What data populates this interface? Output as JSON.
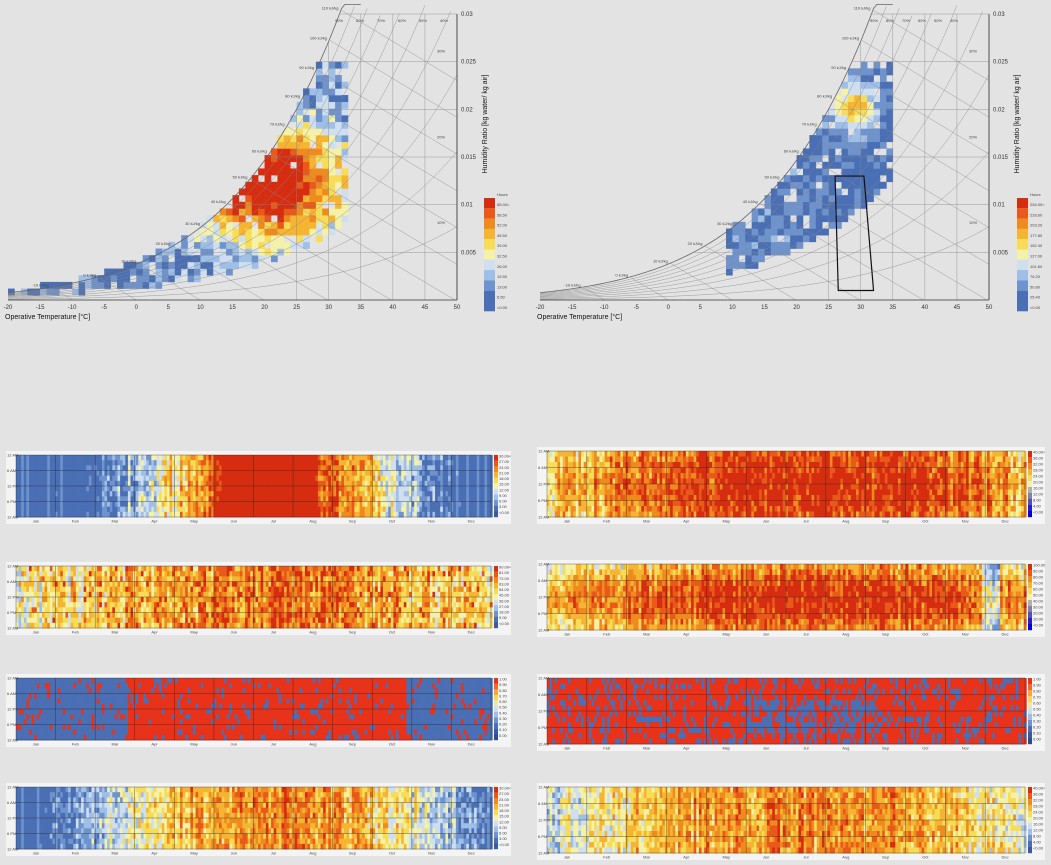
{
  "colors": {
    "background": "#e3e3e3",
    "scale": [
      "#4a6fb4",
      "#6e93cd",
      "#9fbfe6",
      "#cfdff0",
      "#f4f1a8",
      "#f7dc58",
      "#f5b533",
      "#ef8a1e",
      "#e8591a",
      "#d62d10"
    ],
    "binary_low": "#4a6fb4",
    "binary_high": "#e8321a"
  },
  "chart_data": [
    {
      "type": "heatmap",
      "id": "psychrometric-left",
      "xlabel": "Operative Temperature [°C]",
      "ylabel": "Humidity Ratio [kg water/ kg air]",
      "x_ticks": [
        "-20",
        "-15",
        "-10",
        "-5",
        "0",
        "5",
        "10",
        "15",
        "20",
        "25",
        "30",
        "35",
        "40",
        "45",
        "50"
      ],
      "xlim": [
        -20,
        50
      ],
      "y_ticks": [
        "0.005",
        "0.01",
        "0.015",
        "0.02",
        "0.025",
        "0.03"
      ],
      "ylim": [
        0,
        0.03
      ],
      "rh_labels": [
        "90%",
        "80%",
        "70%",
        "60%",
        "50%",
        "40%",
        "30%",
        "20%",
        "10%"
      ],
      "enthalpy_labels": [
        "-10 kJ/kg",
        "0 kJ/kg",
        "10 kJ/kg",
        "20 kJ/kg",
        "30 kJ/kg",
        "40 kJ/kg",
        "50 kJ/kg",
        "60 kJ/kg",
        "70 kJ/kg",
        "80 kJ/kg",
        "90 kJ/kg",
        "100 kJ/kg",
        "110 kJ/kg"
      ],
      "legend_title": "Hours",
      "legend": [
        "65.00<",
        "58.50",
        "52.00",
        "45.50",
        "39.00",
        "32.50",
        "26.00",
        "19.50",
        "13.00",
        "6.50",
        "<0.00"
      ],
      "legend_placement": "right",
      "peak_region": {
        "x": [
          15,
          25
        ],
        "y": [
          0.008,
          0.016
        ]
      }
    },
    {
      "type": "heatmap",
      "id": "psychrometric-right",
      "xlabel": "Operative Temperature [°C]",
      "ylabel": "Humidity Ratio [kg water/ kg air]",
      "x_ticks": [
        "-20",
        "-15",
        "-10",
        "-5",
        "0",
        "5",
        "10",
        "15",
        "20",
        "25",
        "30",
        "35",
        "40",
        "45",
        "50"
      ],
      "xlim": [
        -20,
        50
      ],
      "y_ticks": [
        "0.005",
        "0.01",
        "0.015",
        "0.02",
        "0.025",
        "0.03"
      ],
      "ylim": [
        0,
        0.03
      ],
      "rh_labels": [
        "90%",
        "80%",
        "70%",
        "60%",
        "50%",
        "40%",
        "30%",
        "20%",
        "10%"
      ],
      "enthalpy_labels": [
        "-10 kJ/kg",
        "0 kJ/kg",
        "10 kJ/kg",
        "20 kJ/kg",
        "30 kJ/kg",
        "40 kJ/kg",
        "50 kJ/kg",
        "60 kJ/kg",
        "70 kJ/kg",
        "80 kJ/kg",
        "90 kJ/kg",
        "100 kJ/kg",
        "110 kJ/kg"
      ],
      "legend_title": "Hours",
      "legend": [
        "254.00<",
        "228.60",
        "203.20",
        "177.80",
        "152.40",
        "127.00",
        "101.60",
        "76.20",
        "50.80",
        "25.40",
        "<0.00"
      ],
      "legend_placement": "right",
      "peak_region": {
        "x": [
          25,
          32
        ],
        "y": [
          0.018,
          0.022
        ]
      },
      "comfort_box": {
        "x": [
          26,
          32
        ],
        "y": [
          0.001,
          0.013
        ]
      }
    },
    {
      "type": "heatmap",
      "id": "annual-strip-l1",
      "mode": "seasonal-blue",
      "months": [
        "Jan",
        "Feb",
        "Mar",
        "Apr",
        "May",
        "Jun",
        "Jul",
        "Aug",
        "Sep",
        "Oct",
        "Nov",
        "Dec"
      ],
      "hour_ticks": [
        "12 AM",
        "6 AM",
        "12 PM",
        "6 PM",
        "12 AM"
      ],
      "legend": [
        "30.00<",
        "27.00",
        "24.00",
        "21.00",
        "18.00",
        "15.00",
        "12.00",
        "9.00",
        "6.00",
        "3.00",
        "<0.00"
      ]
    },
    {
      "type": "heatmap",
      "id": "annual-strip-r1",
      "mode": "hot",
      "months": [
        "Jan",
        "Feb",
        "Mar",
        "Apr",
        "May",
        "Jun",
        "Jul",
        "Aug",
        "Sep",
        "Oct",
        "Nov",
        "Dec"
      ],
      "hour_ticks": [
        "12 AM",
        "6 AM",
        "12 PM",
        "6 PM",
        "12 AM"
      ],
      "legend": [
        "40.00<",
        "36.00",
        "32.00",
        "28.00",
        "24.00",
        "20.00",
        "16.00",
        "12.00",
        "8.00",
        "4.00",
        "<0.00"
      ]
    },
    {
      "type": "heatmap",
      "id": "annual-strip-l2",
      "mode": "warm",
      "months": [
        "Jan",
        "Feb",
        "Mar",
        "Apr",
        "May",
        "Jun",
        "Jul",
        "Aug",
        "Sep",
        "Oct",
        "Nov",
        "Dec"
      ],
      "hour_ticks": [
        "12 AM",
        "6 AM",
        "12 PM",
        "6 PM",
        "12 AM"
      ],
      "legend": [
        "90.00<",
        "81.00",
        "72.00",
        "63.00",
        "54.00",
        "45.00",
        "36.00",
        "27.00",
        "18.00",
        "9.00",
        "<0.00"
      ]
    },
    {
      "type": "heatmap",
      "id": "annual-strip-r2",
      "mode": "warm-band",
      "months": [
        "Jan",
        "Feb",
        "Mar",
        "Apr",
        "May",
        "Jun",
        "Jul",
        "Aug",
        "Sep",
        "Oct",
        "Nov",
        "Dec"
      ],
      "hour_ticks": [
        "12 AM",
        "6 AM",
        "12 PM",
        "6 PM",
        "12 AM"
      ],
      "legend": [
        "100.00<",
        "90.00",
        "80.00",
        "70.00",
        "60.00",
        "50.00",
        "40.00",
        "30.00",
        "20.00",
        "10.00",
        "<0.00"
      ]
    },
    {
      "type": "heatmap",
      "id": "annual-strip-l3",
      "mode": "binary-summer",
      "months": [
        "Jan",
        "Feb",
        "Mar",
        "Apr",
        "May",
        "Jun",
        "Jul",
        "Aug",
        "Sep",
        "Oct",
        "Nov",
        "Dec"
      ],
      "hour_ticks": [
        "12 AM",
        "6 AM",
        "12 PM",
        "6 PM",
        "12 AM"
      ],
      "legend": [
        "1.00",
        "0.90",
        "0.80",
        "0.70",
        "0.60",
        "0.50",
        "0.40",
        "0.30",
        "0.20",
        "0.10",
        "0.00"
      ]
    },
    {
      "type": "heatmap",
      "id": "annual-strip-r3",
      "mode": "binary-mixed",
      "months": [
        "Jan",
        "Feb",
        "Mar",
        "Apr",
        "May",
        "Jun",
        "Jul",
        "Aug",
        "Sep",
        "Oct",
        "Nov",
        "Dec"
      ],
      "hour_ticks": [
        "12 AM",
        "6 AM",
        "12 PM",
        "6 PM",
        "12 AM"
      ],
      "legend": [
        "1.00",
        "0.90",
        "0.80",
        "0.70",
        "0.60",
        "0.50",
        "0.40",
        "0.30",
        "0.20",
        "0.10",
        "0.00"
      ]
    },
    {
      "type": "heatmap",
      "id": "annual-strip-l4",
      "mode": "seasonal-mid",
      "months": [
        "Jan",
        "Feb",
        "Mar",
        "Apr",
        "May",
        "Jun",
        "Jul",
        "Aug",
        "Sep",
        "Oct",
        "Nov",
        "Dec"
      ],
      "hour_ticks": [
        "12 AM",
        "6 AM",
        "12 PM",
        "6 PM",
        "12 AM"
      ],
      "legend": [
        "30.00<",
        "27.00",
        "24.00",
        "21.00",
        "18.00",
        "15.00",
        "12.00",
        "9.00",
        "6.00",
        "3.00",
        "<0.00"
      ]
    },
    {
      "type": "heatmap",
      "id": "annual-strip-r4",
      "mode": "warm-light",
      "months": [
        "Jan",
        "Feb",
        "Mar",
        "Apr",
        "May",
        "Jun",
        "Jul",
        "Aug",
        "Sep",
        "Oct",
        "Nov",
        "Dec"
      ],
      "hour_ticks": [
        "12 AM",
        "6 AM",
        "12 PM",
        "6 PM",
        "12 AM"
      ],
      "legend": [
        "40.00<",
        "36.00",
        "32.00",
        "28.00",
        "24.00",
        "20.00",
        "16.00",
        "12.00",
        "8.00",
        "4.00",
        "<0.00"
      ]
    }
  ]
}
